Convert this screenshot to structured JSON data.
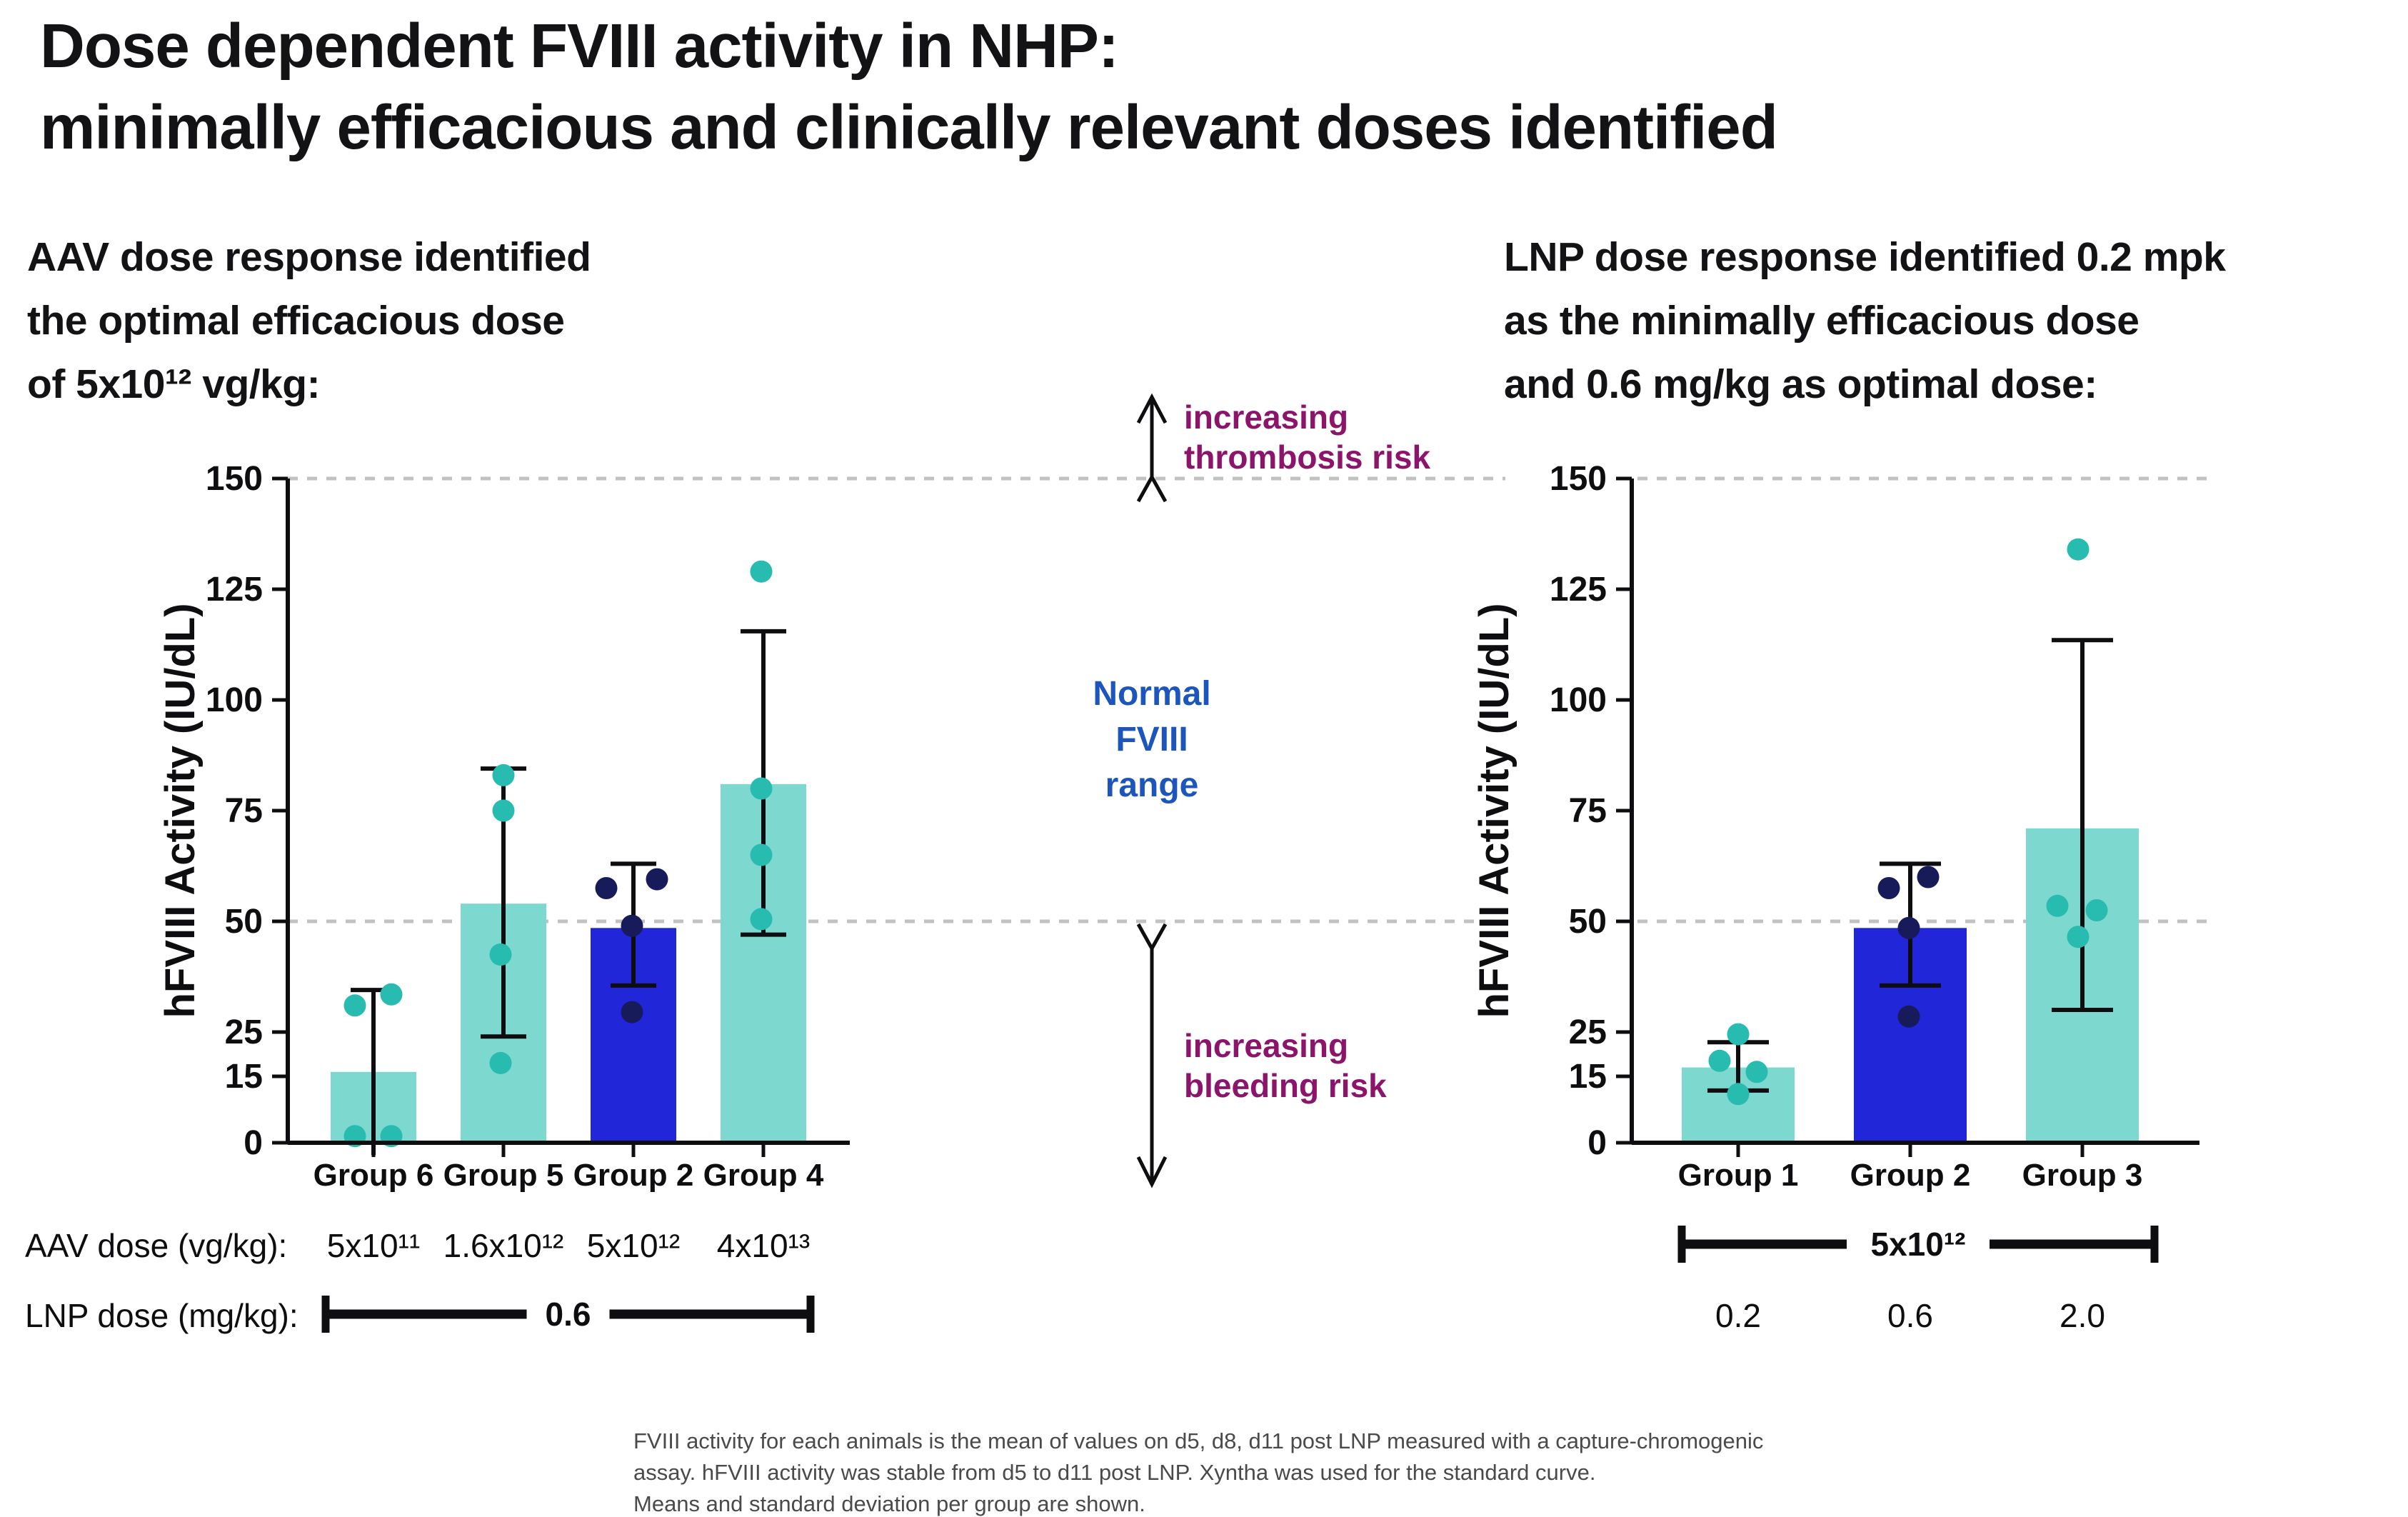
{
  "slide": {
    "title_lines": [
      "Dose dependent FVIII activity in NHP:",
      "minimally efficacious and clinically relevant doses identified"
    ],
    "left_subtitle_lines": [
      "AAV dose response identified",
      "the optimal efficacious dose",
      "of 5x10¹² vg/kg:"
    ],
    "right_subtitle_lines": [
      "LNP dose response identified 0.2 mpk",
      "as the minimally efficacious dose",
      "and 0.6 mg/kg as optimal dose:"
    ],
    "footnote_lines": [
      "FVIII activity for each animals is the mean of values on d5, d8, d11 post LNP measured with a capture-chromogenic",
      "assay. hFVIII activity was stable from d5 to d11 post LNP. Xyntha was used for the standard curve.",
      "Means and standard deviation per group are shown."
    ]
  },
  "annotations": {
    "thrombosis": {
      "lines": [
        "increasing",
        "thrombosis risk"
      ],
      "color": "#8C156B"
    },
    "normal_range": {
      "lines": [
        "Normal",
        "FVIII",
        "range"
      ],
      "color": "#1C56BC"
    },
    "bleeding": {
      "lines": [
        "increasing",
        "bleeding risk"
      ],
      "color": "#8C156B"
    }
  },
  "colors": {
    "teal_bar": "#7DD8CF",
    "teal_dot": "#28BBB0",
    "blue_bar": "#2126D9",
    "navy_dot": "#181B5A",
    "axis": "#0E0E10",
    "grid_dash": "#C1C1C1",
    "risk_text": "#8C156B",
    "normal_text": "#1C56BC",
    "title_text": "#131316",
    "footnote_text": "#4A4A4A"
  },
  "chart_data": [
    {
      "id": "aav",
      "type": "bar",
      "title": "AAV dose response identified the optimal efficacious dose of 5x10¹² vg/kg:",
      "ylabel": "hFVIII Activity (IU/dL)",
      "ylim": [
        0,
        150
      ],
      "yticks": [
        0,
        15,
        25,
        50,
        75,
        100,
        125,
        150
      ],
      "gridlines": [
        50,
        150
      ],
      "grid": "dashed",
      "legend": "none",
      "categories": [
        "Group 6",
        "Group 5",
        "Group 2",
        "Group 4"
      ],
      "series": [
        {
          "group": "Group 6",
          "mean": 16,
          "sd_low": -3,
          "sd_high": 34.5,
          "bar_color": "teal_bar",
          "dot_color": "teal_dot",
          "points": [
            {
              "v": 31,
              "dx": -26
            },
            {
              "v": 33.5,
              "dx": 25
            },
            {
              "v": 1.5,
              "dx": -26
            },
            {
              "v": 1.5,
              "dx": 25
            }
          ]
        },
        {
          "group": "Group 5",
          "mean": 54,
          "sd_low": 24,
          "sd_high": 84.5,
          "bar_color": "teal_bar",
          "dot_color": "teal_dot",
          "points": [
            {
              "v": 83,
              "dx": 0
            },
            {
              "v": 75,
              "dx": 0
            },
            {
              "v": 42.5,
              "dx": -4
            },
            {
              "v": 18,
              "dx": -4
            }
          ]
        },
        {
          "group": "Group 2",
          "mean": 48.5,
          "sd_low": 35.5,
          "sd_high": 63,
          "bar_color": "blue_bar",
          "dot_color": "navy_dot",
          "points": [
            {
              "v": 57.5,
              "dx": -38
            },
            {
              "v": 59.5,
              "dx": 33
            },
            {
              "v": 49,
              "dx": -2
            },
            {
              "v": 29.5,
              "dx": -2
            }
          ]
        },
        {
          "group": "Group 4",
          "mean": 81,
          "sd_low": 47,
          "sd_high": 115.5,
          "bar_color": "teal_bar",
          "dot_color": "teal_dot",
          "points": [
            {
              "v": 129,
              "dx": -3
            },
            {
              "v": 80,
              "dx": -3
            },
            {
              "v": 65,
              "dx": -3
            },
            {
              "v": 50.5,
              "dx": -3
            }
          ]
        }
      ],
      "dose_rows": [
        {
          "kind": "values",
          "row_label": "AAV dose (vg/kg):",
          "values": [
            "5x10¹¹",
            "1.6x10¹²",
            "5x10¹²",
            "4x10¹³"
          ]
        },
        {
          "kind": "bracket",
          "row_label": "LNP dose (mg/kg):",
          "bracket_label": "0.6"
        }
      ]
    },
    {
      "id": "lnp",
      "type": "bar",
      "title": "LNP dose response identified 0.2 mpk as the minimally efficacious dose and 0.6 mg/kg as optimal dose:",
      "ylabel": "hFVIII Activity (IU/dL)",
      "ylim": [
        0,
        150
      ],
      "yticks": [
        0,
        15,
        25,
        50,
        75,
        100,
        125,
        150
      ],
      "gridlines": [
        50,
        150
      ],
      "grid": "dashed",
      "legend": "none",
      "categories": [
        "Group 1",
        "Group 2",
        "Group 3"
      ],
      "series": [
        {
          "group": "Group 1",
          "mean": 17,
          "sd_low": 11.8,
          "sd_high": 22.7,
          "bar_color": "teal_bar",
          "dot_color": "teal_dot",
          "points": [
            {
              "v": 24.5,
              "dx": 0
            },
            {
              "v": 18.5,
              "dx": -26
            },
            {
              "v": 16,
              "dx": 26
            },
            {
              "v": 11,
              "dx": 0
            }
          ]
        },
        {
          "group": "Group 2",
          "mean": 48.5,
          "sd_low": 35.5,
          "sd_high": 63,
          "bar_color": "blue_bar",
          "dot_color": "navy_dot",
          "points": [
            {
              "v": 57.5,
              "dx": -30
            },
            {
              "v": 60,
              "dx": 25
            },
            {
              "v": 48.5,
              "dx": -2
            },
            {
              "v": 28.5,
              "dx": -2
            }
          ]
        },
        {
          "group": "Group 3",
          "mean": 71,
          "sd_low": 30,
          "sd_high": 113.5,
          "bar_color": "teal_bar",
          "dot_color": "teal_dot",
          "points": [
            {
              "v": 134,
              "dx": -6
            },
            {
              "v": 53.5,
              "dx": -35
            },
            {
              "v": 52.5,
              "dx": 20
            },
            {
              "v": 46.5,
              "dx": -6
            }
          ]
        }
      ],
      "dose_rows": [
        {
          "kind": "bracket",
          "bracket_label": "5x10¹²"
        },
        {
          "kind": "values",
          "values": [
            "0.2",
            "0.6",
            "2.0"
          ]
        }
      ]
    }
  ]
}
